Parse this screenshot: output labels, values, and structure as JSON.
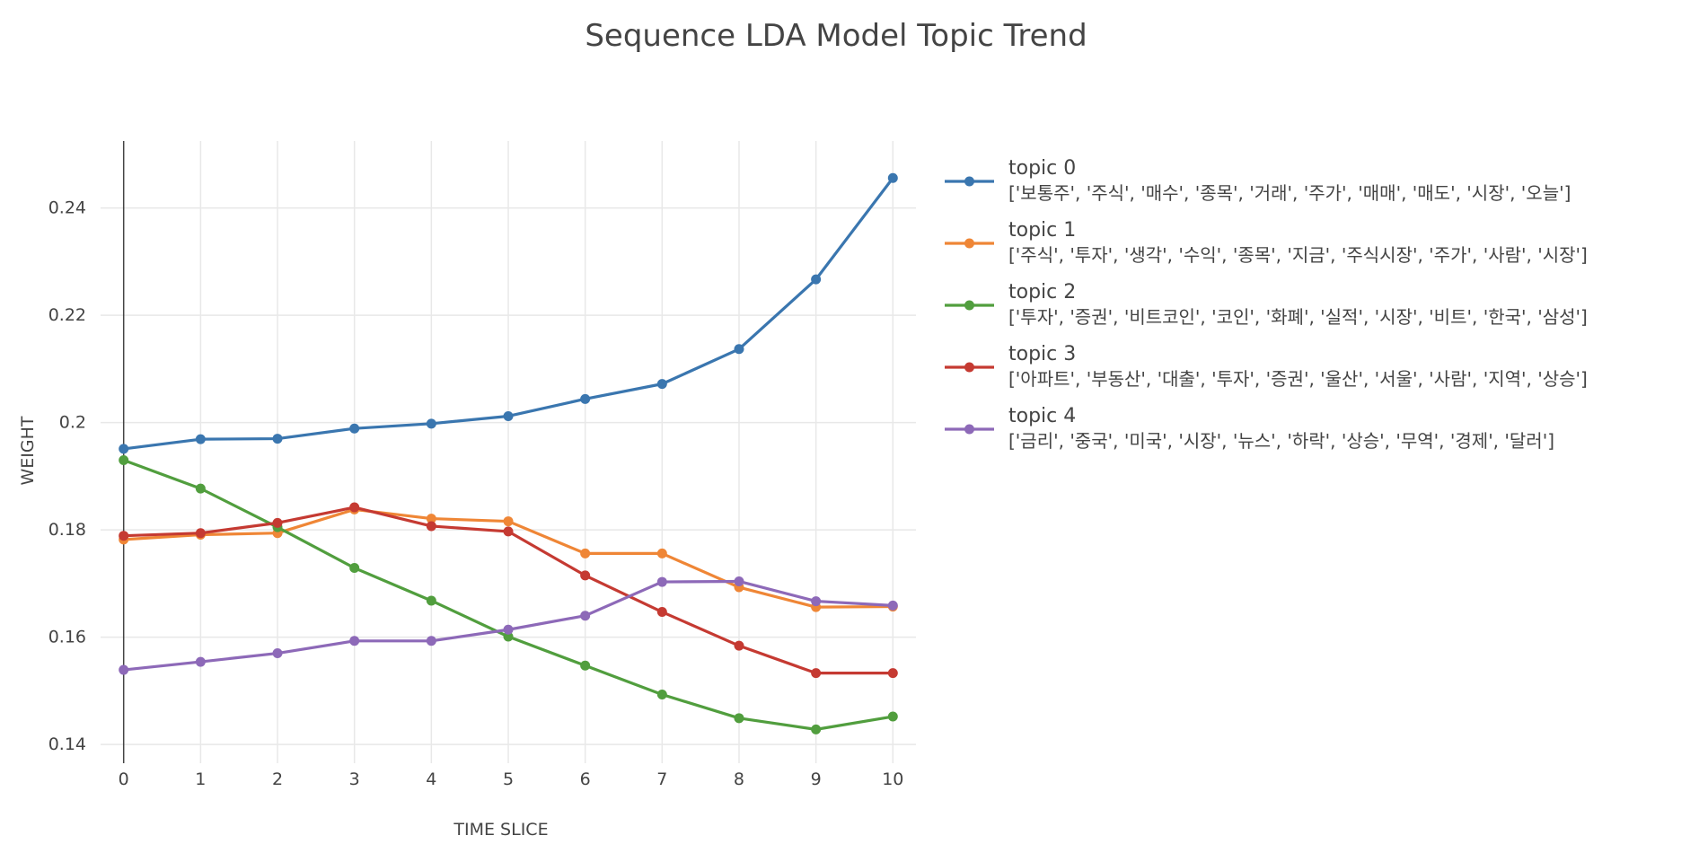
{
  "chart_data": {
    "type": "line",
    "title": "Sequence LDA Model Topic Trend",
    "xlabel": "TIME SLICE",
    "ylabel": "WEIGHT",
    "x": [
      0,
      1,
      2,
      3,
      4,
      5,
      6,
      7,
      8,
      9,
      10
    ],
    "xlim": [
      -0.3,
      10.3
    ],
    "ylim": [
      0.1365,
      0.2525
    ],
    "yticks": [
      0.14,
      0.16,
      0.18,
      0.2,
      0.22,
      0.24
    ],
    "ytick_labels": [
      "0.14",
      "0.16",
      "0.18",
      "0.2",
      "0.22",
      "0.24"
    ],
    "grid": true,
    "legend_position": "right",
    "series": [
      {
        "name": "topic 0",
        "words": "['보통주', '주식', '매수', '종목', '거래', '주가', '매매', '매도', '시장', '오늘']",
        "color": "#3a76af",
        "values": [
          0.1951,
          0.1969,
          0.197,
          0.1989,
          0.1998,
          0.2012,
          0.2044,
          0.2072,
          0.2137,
          0.2267,
          0.2456
        ]
      },
      {
        "name": "topic 1",
        "words": "['주식', '투자', '생각', '수익', '종목', '지금', '주식시장', '주가', '사람', '시장']",
        "color": "#ef8636",
        "values": [
          0.1782,
          0.1791,
          0.1794,
          0.1838,
          0.1821,
          0.1816,
          0.1756,
          0.1756,
          0.1693,
          0.1656,
          0.1657
        ]
      },
      {
        "name": "topic 2",
        "words": "['투자', '증권', '비트코인', '코인', '화폐', '실적', '시장', '비트', '한국', '삼성']",
        "color": "#519e3e",
        "values": [
          0.193,
          0.1877,
          0.1805,
          0.1729,
          0.1668,
          0.1601,
          0.1547,
          0.1493,
          0.1449,
          0.1428,
          0.1452
        ]
      },
      {
        "name": "topic 3",
        "words": "['아파트', '부동산', '대출', '투자', '증권', '울산', '서울', '사람', '지역', '상승']",
        "color": "#c53a32",
        "values": [
          0.1789,
          0.1794,
          0.1813,
          0.1842,
          0.1807,
          0.1797,
          0.1715,
          0.1647,
          0.1584,
          0.1533,
          0.1533
        ]
      },
      {
        "name": "topic 4",
        "words": "['금리', '중국', '미국', '시장', '뉴스', '하락', '상승', '무역', '경제', '달러']",
        "color": "#8d69b8",
        "values": [
          0.1539,
          0.1554,
          0.157,
          0.1593,
          0.1593,
          0.1614,
          0.164,
          0.1703,
          0.1704,
          0.1667,
          0.1659
        ]
      }
    ]
  }
}
